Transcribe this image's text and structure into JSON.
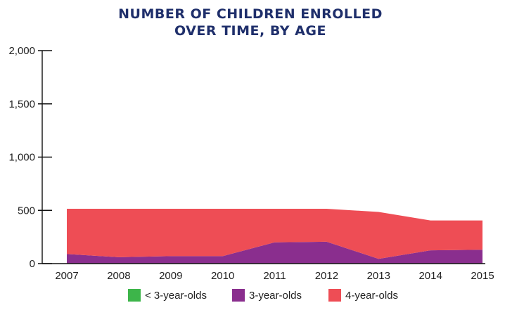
{
  "chart_data": {
    "type": "area",
    "stacked": true,
    "title": [
      "NUMBER OF CHILDREN ENROLLED",
      "OVER TIME, BY AGE"
    ],
    "xlabel": "",
    "ylabel": "",
    "x": [
      "2007",
      "2008",
      "2009",
      "2010",
      "2011",
      "2012",
      "2013",
      "2014",
      "2015"
    ],
    "ylim": [
      0,
      2000
    ],
    "yticks": [
      0,
      500,
      1000,
      1500,
      2000
    ],
    "ytick_labels": [
      "0",
      "500",
      "1,000",
      "1,500",
      "2,000"
    ],
    "grid": false,
    "legend_position": "bottom",
    "series": [
      {
        "name": "< 3-year-olds",
        "color": "#3db54a",
        "values": [
          0,
          0,
          0,
          0,
          0,
          0,
          0,
          0,
          0
        ]
      },
      {
        "name": "3-year-olds",
        "color": "#8a2e8e",
        "values": [
          90,
          60,
          70,
          70,
          200,
          205,
          45,
          125,
          130
        ]
      },
      {
        "name": "4-year-olds",
        "color": "#ee4d55",
        "values": [
          425,
          455,
          445,
          445,
          315,
          310,
          440,
          280,
          275
        ]
      }
    ]
  }
}
